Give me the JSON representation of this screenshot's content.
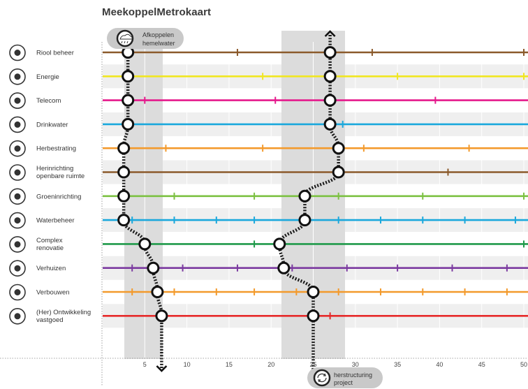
{
  "title": "MeekoppelMetrokaart",
  "rows": [
    {
      "label": "Riool beheer",
      "icon": "sewer-icon",
      "color": "#8b5a2b",
      "ticks": [
        16,
        32,
        50
      ]
    },
    {
      "label": "Energie",
      "icon": "energy-icon",
      "color": "#f0e622",
      "ticks": [
        3,
        19,
        35,
        50
      ]
    },
    {
      "label": "Telecom",
      "icon": "telecom-icon",
      "color": "#e5198c",
      "ticks": [
        5,
        20.5,
        39.5
      ]
    },
    {
      "label": "Drinkwater",
      "icon": "drinkwater-icon",
      "color": "#1aa8dc",
      "ticks": [
        28.5
      ]
    },
    {
      "label": "Herbestrating",
      "icon": "paving-icon",
      "color": "#f39a2c",
      "ticks": [
        7.5,
        19,
        31,
        43.5
      ]
    },
    {
      "label": "Herinrichting openbare ruimte",
      "icon": "public-space-icon",
      "color": "#8b5a2b",
      "ticks": [
        41
      ]
    },
    {
      "label": "Groeninrichting",
      "icon": "tree-icon",
      "color": "#7cc142",
      "ticks": [
        8.5,
        18,
        28,
        38,
        50
      ]
    },
    {
      "label": "Waterbeheer",
      "icon": "water-icon",
      "color": "#1aa8dc",
      "ticks": [
        3.5,
        8.5,
        13.5,
        18,
        28,
        33,
        38,
        43,
        49
      ]
    },
    {
      "label": "Complex renovatie",
      "icon": "renovation-icon",
      "color": "#1f9a4a",
      "ticks": [
        18,
        50
      ]
    },
    {
      "label": "Verhuizen",
      "icon": "truck-icon",
      "color": "#7b3aa0",
      "ticks": [
        3.5,
        9.5,
        16,
        22.5,
        29,
        35,
        41.5,
        48
      ]
    },
    {
      "label": "Verbouwen",
      "icon": "house-icon",
      "color": "#f39a2c",
      "ticks": [
        3.5,
        8.5,
        13.5,
        18,
        23,
        28,
        33,
        38,
        43,
        48
      ]
    },
    {
      "label": "(Her) Ontwikkeling vastgoed",
      "icon": "buildings-icon",
      "color": "#e62a2a",
      "ticks": [
        27
      ]
    }
  ],
  "x_ticks": [
    5,
    10,
    15,
    20,
    25,
    30,
    35,
    40,
    45,
    50
  ],
  "paths": [
    {
      "name": "Afkoppelen hemelwater",
      "stations": [
        3,
        3,
        3,
        3,
        2.5,
        2.5,
        2.5,
        2.5,
        5,
        6,
        6.5,
        7
      ]
    },
    {
      "name": "herstructuring project",
      "stations": [
        27,
        27,
        27,
        27,
        28,
        28,
        24,
        24,
        21,
        21.5,
        25,
        25
      ]
    }
  ],
  "pill_top": {
    "line1": "Afkoppelen",
    "line2": "hemelwater"
  },
  "pill_bottom": {
    "line1": "herstructuring",
    "line2": "project"
  }
}
